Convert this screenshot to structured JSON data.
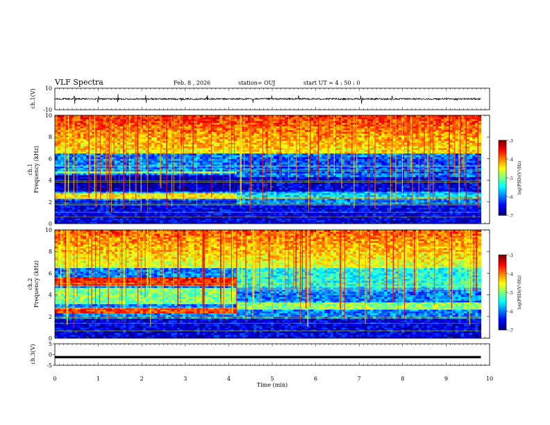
{
  "header": {
    "title": "VLF Spectra",
    "date": "Feb. 8  , 2026",
    "station": "station= OUJ",
    "start_ut": "start  UT  =   4 : 50 : 0"
  },
  "chart_data": [
    {
      "type": "line",
      "name": "ch1-waveform",
      "ylabel": "ch.1(V)",
      "ylim": [
        -10,
        10
      ],
      "yticks": [
        "10",
        "-10"
      ],
      "baseline": 0,
      "noise_amplitude": 1.5,
      "spikes": [
        0.45,
        1.0,
        1.45,
        2.1,
        2.9,
        3.5,
        4.55,
        5.0,
        5.6,
        7.05,
        7.75,
        9.25
      ]
    },
    {
      "type": "heatmap",
      "name": "ch1-spectrogram",
      "ylabel": "ch.1\nFrequency  (kHz)",
      "x_range_min": [
        0,
        9.8
      ],
      "ylim": [
        0,
        10
      ],
      "yticks": [
        "0",
        "2",
        "4",
        "6",
        "8",
        "10"
      ],
      "colorbar": {
        "label": "log(PSD)(V²/Hz)",
        "range": [
          -7,
          -3
        ],
        "ticks": [
          "-3",
          "-4",
          "-5",
          "-6",
          "-7"
        ]
      },
      "segments": [
        {
          "t_start": 0.0,
          "t_end": 4.15,
          "bands_khz": [
            {
              "f": [
                4.6,
                4.9
              ],
              "level": -4.8
            },
            {
              "f": [
                2.3,
                2.9
              ],
              "level": -4.5
            },
            {
              "f": [
                3.0,
                4.5
              ],
              "level": -6.8
            },
            {
              "f": [
                1.8,
                2.2
              ],
              "level": -6.5
            }
          ]
        },
        {
          "t_start": 4.15,
          "t_end": 9.8,
          "bands_khz": [
            {
              "f": [
                4.6,
                6.2
              ],
              "level": -6.2
            },
            {
              "f": [
                3.0,
                4.4
              ],
              "level": -6.6
            },
            {
              "f": [
                2.3,
                2.9
              ],
              "level": -5.6
            }
          ]
        }
      ],
      "high_freq_level": -4.5
    },
    {
      "type": "heatmap",
      "name": "ch2-spectrogram",
      "ylabel": "ch.2\nFrequency  (kHz)",
      "x_range_min": [
        0,
        9.8
      ],
      "ylim": [
        0,
        10
      ],
      "yticks": [
        "0",
        "2",
        "4",
        "6",
        "8",
        "10"
      ],
      "colorbar": {
        "label": "log(PSD)(V²/Hz)",
        "range": [
          -7,
          -3
        ],
        "ticks": [
          "-3",
          "-4",
          "-5",
          "-6",
          "-7"
        ]
      },
      "segments": [
        {
          "t_start": 0.0,
          "t_end": 4.15,
          "bands_khz": [
            {
              "f": [
                4.8,
                5.6
              ],
              "level": -3.6
            },
            {
              "f": [
                2.4,
                2.8
              ],
              "level": -3.7
            },
            {
              "f": [
                3.2,
                4.6
              ],
              "level": -5.0
            }
          ]
        },
        {
          "t_start": 4.15,
          "t_end": 9.8,
          "bands_khz": [
            {
              "f": [
                4.6,
                6.5
              ],
              "level": -5.4
            },
            {
              "f": [
                2.6,
                3.3
              ],
              "level": -4.9
            }
          ]
        }
      ],
      "high_freq_level": -4.7
    },
    {
      "type": "line",
      "name": "ch3-waveform",
      "ylabel": "ch.3(V)",
      "ylim": [
        -5,
        5
      ],
      "yticks": [
        "5",
        "0",
        "-5"
      ],
      "baseline": -1.2
    }
  ],
  "xaxis": {
    "label": "Time  (min)",
    "xlim": [
      0,
      10
    ],
    "ticks": [
      "0",
      "1",
      "2",
      "3",
      "4",
      "5",
      "6",
      "7",
      "8",
      "9",
      "10"
    ]
  }
}
